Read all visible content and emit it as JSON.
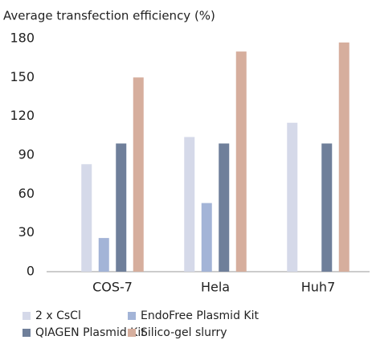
{
  "chart_data": {
    "type": "bar",
    "title": "Average transfection efficiency (%)",
    "categories": [
      "COS-7",
      "Hela",
      "Huh7"
    ],
    "series": [
      {
        "name": "2 x CsCl",
        "color": "#d5d9e9",
        "values": [
          83,
          104,
          115
        ]
      },
      {
        "name": "EndoFree Plasmid Kit",
        "color": "#a3b4d7",
        "values": [
          26,
          53,
          null
        ]
      },
      {
        "name": "QIAGEN Plasmid Kit",
        "color": "#6f7f9a",
        "values": [
          99,
          99,
          99
        ]
      },
      {
        "name": "Silico-gel slurry",
        "color": "#d6ae9d",
        "values": [
          150,
          170,
          177
        ]
      }
    ],
    "ylim": [
      0,
      180
    ],
    "yticks": [
      0,
      30,
      60,
      90,
      120,
      150,
      180
    ],
    "grid": false
  }
}
